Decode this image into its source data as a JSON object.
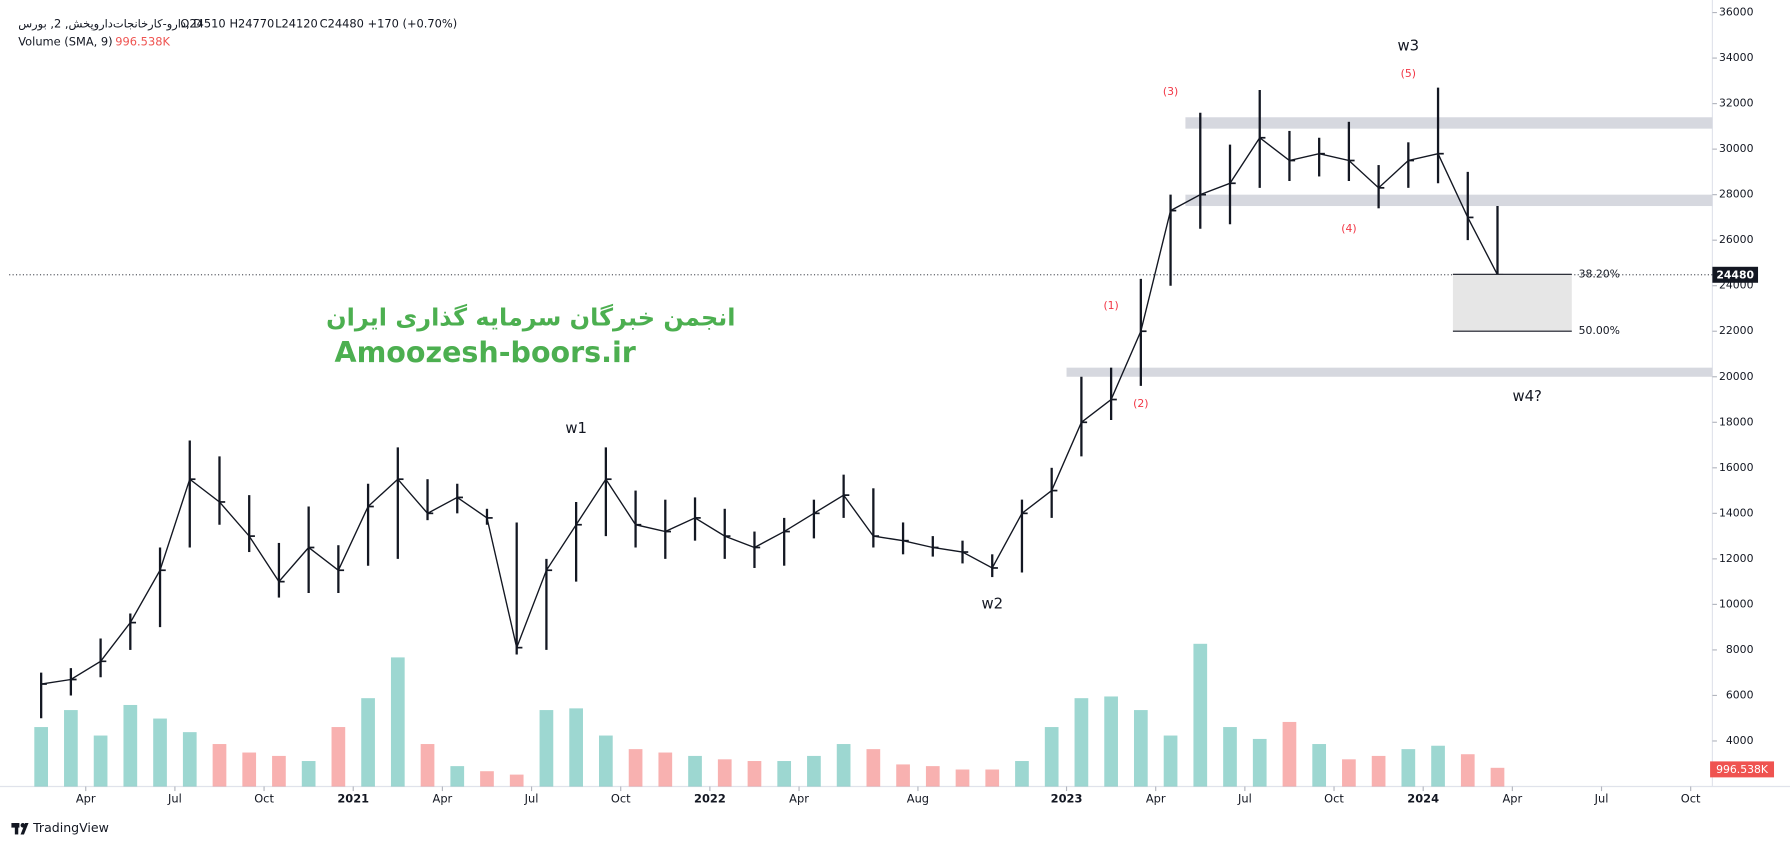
{
  "header": {
    "symbol": "دارو-کارخانجات‌داروپخش, 2, بورس, D",
    "open": "O24510",
    "high": "H24770",
    "low": "L24120",
    "close": "C24480",
    "change": "+170 (+0.70%)",
    "indicator": "Volume (SMA, 9)",
    "indicator_value": "996.538K"
  },
  "watermark": {
    "line1": "انجمن خبرگان سرمایه گذاری ایران",
    "line2": "Amoozesh-boors.ir"
  },
  "footer": {
    "brand": "TradingView"
  },
  "chart_data": {
    "type": "ohlc",
    "x": [
      "2020-02",
      "2020-03",
      "2020-04",
      "2020-05",
      "2020-06",
      "2020-07",
      "2020-08",
      "2020-09",
      "2020-10",
      "2020-11",
      "2020-12",
      "2021-01",
      "2021-02",
      "2021-03",
      "2021-04",
      "2021-05",
      "2021-06",
      "2021-07",
      "2021-08",
      "2021-09",
      "2021-10",
      "2021-11",
      "2021-12",
      "2022-01",
      "2022-02",
      "2022-03",
      "2022-04",
      "2022-05",
      "2022-06",
      "2022-07",
      "2022-08",
      "2022-09",
      "2022-10",
      "2022-11",
      "2022-12",
      "2023-01",
      "2023-02",
      "2023-03",
      "2023-04",
      "2023-05",
      "2023-06",
      "2023-07",
      "2023-08",
      "2023-09",
      "2023-10",
      "2023-11",
      "2023-12",
      "2024-01",
      "2024-02",
      "2024-03"
    ],
    "high": [
      7000,
      7200,
      8500,
      9600,
      12500,
      17200,
      16500,
      14800,
      12700,
      14300,
      12600,
      15300,
      16900,
      15500,
      15300,
      14200,
      13600,
      12000,
      14500,
      16900,
      15000,
      14600,
      14700,
      14200,
      13200,
      13800,
      14600,
      15700,
      15100,
      13600,
      13000,
      12800,
      12200,
      14600,
      16000,
      20000,
      20400,
      24300,
      28000,
      31600,
      30200,
      32600,
      30800,
      30500,
      31200,
      29300,
      30300,
      32700,
      29000,
      27500
    ],
    "low": [
      5000,
      6000,
      6800,
      8000,
      9000,
      12500,
      13500,
      12300,
      10300,
      10500,
      10500,
      11700,
      12000,
      13700,
      14000,
      13500,
      7800,
      8000,
      11000,
      13000,
      12500,
      12000,
      12800,
      12000,
      11600,
      11700,
      12900,
      13800,
      12500,
      12200,
      12100,
      11800,
      11200,
      11400,
      13800,
      16500,
      18100,
      19600,
      24000,
      26500,
      26700,
      28300,
      28600,
      28800,
      28600,
      27400,
      28300,
      28500,
      26000,
      24120
    ],
    "close": [
      6500,
      6700,
      7500,
      9200,
      11500,
      15500,
      14500,
      13000,
      11000,
      12500,
      11500,
      14300,
      15500,
      14000,
      14700,
      13800,
      8100,
      11500,
      13500,
      15500,
      13500,
      13200,
      13800,
      13000,
      12500,
      13200,
      14000,
      14800,
      13000,
      12800,
      12500,
      12300,
      11600,
      14000,
      15000,
      18000,
      19000,
      22000,
      27300,
      28000,
      28500,
      30500,
      29500,
      29800,
      29500,
      28300,
      29500,
      29800,
      27000,
      24480
    ],
    "volume": [
      3500000,
      4500000,
      3000000,
      4800000,
      4000000,
      3200000,
      2500000,
      2000000,
      1800000,
      1500000,
      3500000,
      5200000,
      7600000,
      2500000,
      1200000,
      900000,
      700000,
      4500000,
      4600000,
      3000000,
      2200000,
      2000000,
      1800000,
      1600000,
      1500000,
      1500000,
      1800000,
      2500000,
      2200000,
      1300000,
      1200000,
      1000000,
      1000000,
      1500000,
      3500000,
      5200000,
      5300000,
      4500000,
      3000000,
      8400000,
      3500000,
      2800000,
      3800000,
      2500000,
      1600000,
      1800000,
      2200000,
      2400000,
      1900000,
      1100000
    ],
    "up_color": "#26a69a",
    "down_color": "#ef5350",
    "bar_color": "#131722",
    "xlim": [
      "2020-01",
      "2024-10"
    ],
    "xticks": [
      {
        "value": "2020-04",
        "label": "Apr"
      },
      {
        "value": "2020-07",
        "label": "Jul"
      },
      {
        "value": "2020-10",
        "label": "Oct"
      },
      {
        "value": "2021-01",
        "label": "2021"
      },
      {
        "value": "2021-04",
        "label": "Apr"
      },
      {
        "value": "2021-07",
        "label": "Jul"
      },
      {
        "value": "2021-10",
        "label": "Oct"
      },
      {
        "value": "2022-01",
        "label": "2022"
      },
      {
        "value": "2022-04",
        "label": "Apr"
      },
      {
        "value": "2022-08",
        "label": "Aug"
      },
      {
        "value": "2023-01",
        "label": "2023"
      },
      {
        "value": "2023-04",
        "label": "Apr"
      },
      {
        "value": "2023-07",
        "label": "Jul"
      },
      {
        "value": "2023-10",
        "label": "Oct"
      },
      {
        "value": "2024-01",
        "label": "2024"
      },
      {
        "value": "2024-04",
        "label": "Apr"
      },
      {
        "value": "2024-07",
        "label": "Jul"
      },
      {
        "value": "2024-10",
        "label": "Oct"
      }
    ],
    "ylim": [
      2000,
      36000
    ],
    "yticks": [
      4000,
      6000,
      8000,
      10000,
      12000,
      14000,
      16000,
      18000,
      20000,
      22000,
      24000,
      26000,
      28000,
      30000,
      32000,
      34000,
      36000
    ],
    "zones": [
      {
        "from": "2023-05",
        "low": 30900,
        "high": 31400
      },
      {
        "from": "2023-05",
        "low": 27500,
        "high": 28000
      },
      {
        "from": "2023-01",
        "low": 20000,
        "high": 20400
      }
    ],
    "fib": {
      "from": "2024-02",
      "to": "2024-06",
      "levels": [
        {
          "price": 24500,
          "label": "38.20%"
        },
        {
          "price": 22000,
          "label": "50.00%"
        }
      ]
    },
    "annotations": [
      {
        "x": "2021-08",
        "price": 17700,
        "label": "w1",
        "style": "wave"
      },
      {
        "x": "2022-10",
        "price": 10000,
        "label": "w2",
        "style": "wave"
      },
      {
        "x": "2023-12",
        "price": 34500,
        "label": "w3",
        "style": "wave"
      },
      {
        "x": "2024-04",
        "price": 19100,
        "label": "w4?",
        "style": "wave"
      },
      {
        "x": "2023-02",
        "price": 23100,
        "label": "(1)",
        "style": "sub"
      },
      {
        "x": "2023-03",
        "price": 18800,
        "label": "(2)",
        "style": "sub"
      },
      {
        "x": "2023-04",
        "price": 32500,
        "label": "(3)",
        "style": "sub"
      },
      {
        "x": "2023-10",
        "price": 26500,
        "label": "(4)",
        "style": "sub"
      },
      {
        "x": "2023-12",
        "price": 33300,
        "label": "(5)",
        "style": "sub"
      }
    ]
  }
}
